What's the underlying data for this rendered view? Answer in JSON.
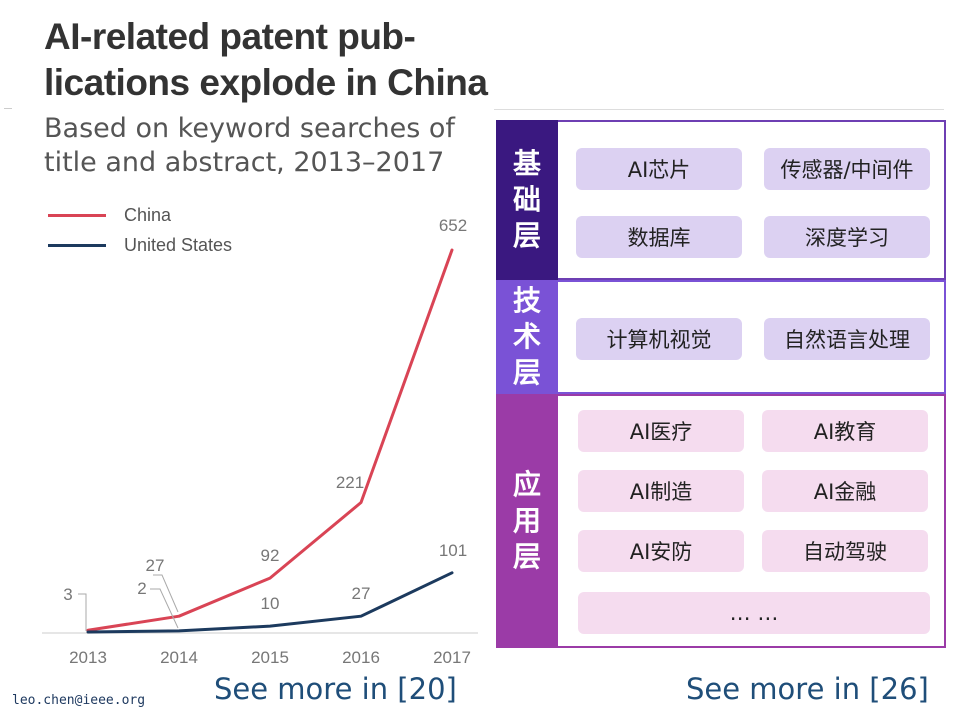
{
  "chart_data": {
    "type": "line",
    "title": "AI-related patent pub- lications explode in China",
    "subtitle": "Based on keyword searches of title and abstract, 2013–2017",
    "x": [
      "2013",
      "2014",
      "2015",
      "2016",
      "2017"
    ],
    "series": [
      {
        "name": "China",
        "color": "#d94455",
        "values": [
          3,
          27,
          92,
          221,
          652
        ]
      },
      {
        "name": "United States",
        "color": "#1c3a5e",
        "values": [
          0,
          2,
          10,
          27,
          101
        ]
      }
    ],
    "data_labels": {
      "China": [
        "3",
        "27",
        "92",
        "221",
        "652"
      ],
      "United States": [
        "",
        "2",
        "10",
        "27",
        "101"
      ]
    },
    "ylim": [
      0,
      652
    ],
    "grid": false,
    "legend_position": "top-left"
  },
  "stack": {
    "layers": [
      {
        "label": "基础层",
        "label_bg": "#3a1880",
        "border": "#6e3fb3",
        "pill_bg": "#dcd1f2",
        "items": [
          "AI芯片",
          "传感器/中间件",
          "数据库",
          "深度学习"
        ]
      },
      {
        "label": "技术层",
        "label_bg": "#7a52d6",
        "border": "#7a52d6",
        "pill_bg": "#dcd1f2",
        "items": [
          "计算机视觉",
          "自然语言处理"
        ]
      },
      {
        "label": "应用层",
        "label_bg": "#9b3ba7",
        "border": "#9b3ba7",
        "pill_bg": "#f5dcef",
        "items": [
          "AI医疗",
          "AI教育",
          "AI制造",
          "AI金融",
          "AI安防",
          "自动驾驶",
          "… …"
        ]
      }
    ]
  },
  "footer": {
    "email": "leo.chen@ieee.org",
    "see_more_left": "See more in [20]",
    "see_more_right": "See more in [26]"
  }
}
